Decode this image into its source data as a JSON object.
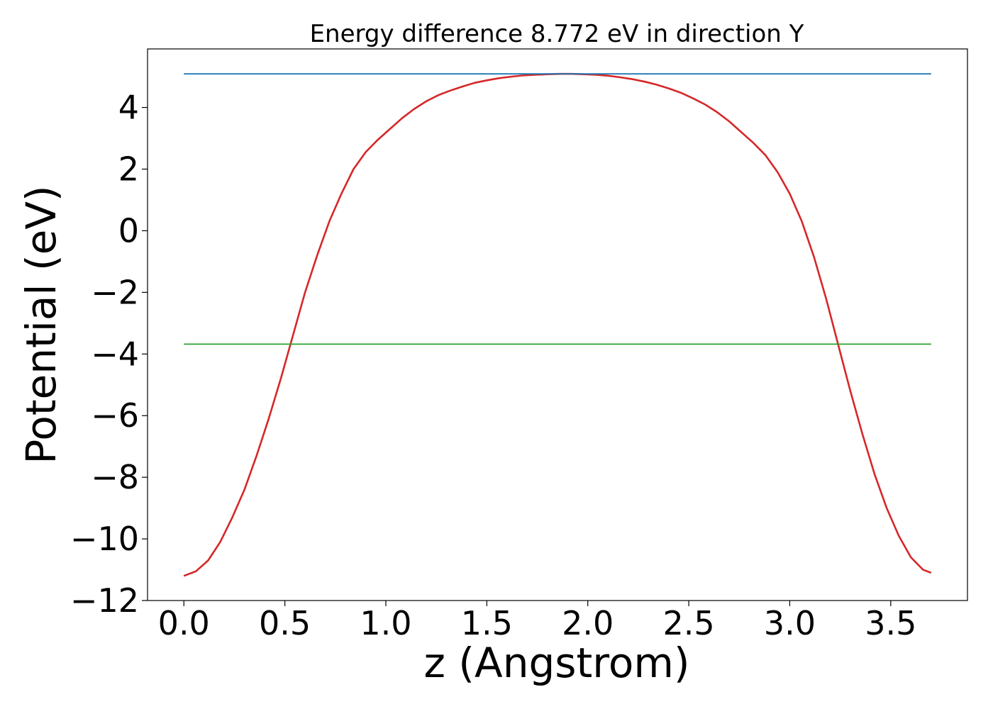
{
  "chart_data": {
    "type": "line",
    "title": "Energy difference 8.772 eV in direction Y",
    "xlabel": "z (Angstrom)",
    "ylabel": "Potential (eV)",
    "xlim": [
      -0.18,
      3.88
    ],
    "ylim": [
      -12.0,
      5.9
    ],
    "xticks": [
      0.0,
      0.5,
      1.0,
      1.5,
      2.0,
      2.5,
      3.0,
      3.5
    ],
    "xtick_labels": [
      "0.0",
      "0.5",
      "1.0",
      "1.5",
      "2.0",
      "2.5",
      "3.0",
      "3.5"
    ],
    "yticks": [
      4,
      2,
      0,
      -2,
      -4,
      -6,
      -8,
      -10,
      -12
    ],
    "ytick_labels": [
      "4",
      "2",
      "0",
      "−2",
      "−4",
      "−6",
      "−8",
      "−10",
      "−12"
    ],
    "grid": false,
    "series": [
      {
        "color": "#d62728",
        "x": [
          0.0,
          0.06,
          0.12,
          0.18,
          0.24,
          0.3,
          0.36,
          0.42,
          0.48,
          0.54,
          0.6,
          0.66,
          0.72,
          0.78,
          0.84,
          0.9,
          0.96,
          1.02,
          1.08,
          1.14,
          1.2,
          1.26,
          1.32,
          1.38,
          1.44,
          1.5,
          1.56,
          1.62,
          1.68,
          1.74,
          1.8,
          1.86,
          1.92,
          1.98,
          2.04,
          2.1,
          2.16,
          2.22,
          2.28,
          2.34,
          2.4,
          2.46,
          2.52,
          2.58,
          2.64,
          2.7,
          2.76,
          2.82,
          2.88,
          2.94,
          3.0,
          3.06,
          3.12,
          3.18,
          3.24,
          3.3,
          3.36,
          3.42,
          3.48,
          3.54,
          3.6,
          3.66,
          3.7
        ],
        "y": [
          -11.2,
          -11.05,
          -10.7,
          -10.1,
          -9.3,
          -8.4,
          -7.3,
          -6.1,
          -4.8,
          -3.4,
          -2.0,
          -0.8,
          0.3,
          1.2,
          2.0,
          2.55,
          2.95,
          3.3,
          3.65,
          3.95,
          4.2,
          4.4,
          4.55,
          4.68,
          4.8,
          4.88,
          4.95,
          5.0,
          5.04,
          5.06,
          5.08,
          5.09,
          5.09,
          5.08,
          5.06,
          5.03,
          4.98,
          4.92,
          4.84,
          4.74,
          4.62,
          4.48,
          4.3,
          4.1,
          3.85,
          3.55,
          3.2,
          2.85,
          2.45,
          1.9,
          1.2,
          0.3,
          -0.85,
          -2.2,
          -3.7,
          -5.2,
          -6.6,
          -7.9,
          -9.0,
          -9.9,
          -10.6,
          -11.0,
          -11.1
        ]
      },
      {
        "color": "#1f77b4",
        "x": [
          0.0,
          3.7
        ],
        "y": [
          5.09,
          5.09
        ]
      },
      {
        "color": "#2ca02c",
        "x": [
          0.0,
          3.7
        ],
        "y": [
          -3.68,
          -3.68
        ]
      }
    ]
  }
}
